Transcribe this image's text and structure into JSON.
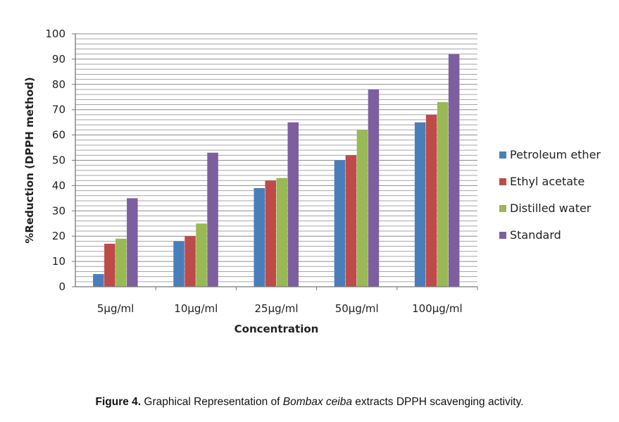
{
  "chart_data": {
    "type": "bar",
    "categories": [
      "5µg/ml",
      "10µg/ml",
      "25µg/ml",
      "50µg/ml",
      "100µg/ml"
    ],
    "series": [
      {
        "name": "Petroleum ether",
        "color": "#4a7ebb",
        "values": [
          5,
          18,
          39,
          50,
          65
        ]
      },
      {
        "name": "Ethyl acetate",
        "color": "#be4b48",
        "values": [
          17,
          20,
          42,
          52,
          68
        ]
      },
      {
        "name": "Distilled water",
        "color": "#98b954",
        "values": [
          19,
          25,
          43,
          62,
          73
        ]
      },
      {
        "name": "Standard",
        "color": "#7d5fa0",
        "values": [
          35,
          53,
          65,
          78,
          92
        ]
      }
    ],
    "xlabel": "Concentration",
    "ylabel": "%Reduction (DPPH method)",
    "ylim": [
      0,
      100
    ],
    "yticks": [
      0,
      10,
      20,
      30,
      40,
      50,
      60,
      70,
      80,
      90,
      100
    ],
    "grid": true,
    "legend_position": "right"
  },
  "caption": {
    "label": "Figure 4.",
    "text_before": " Graphical Representation of ",
    "italic": "Bombax ceiba",
    "text_after": " extracts DPPH scavenging activity."
  }
}
